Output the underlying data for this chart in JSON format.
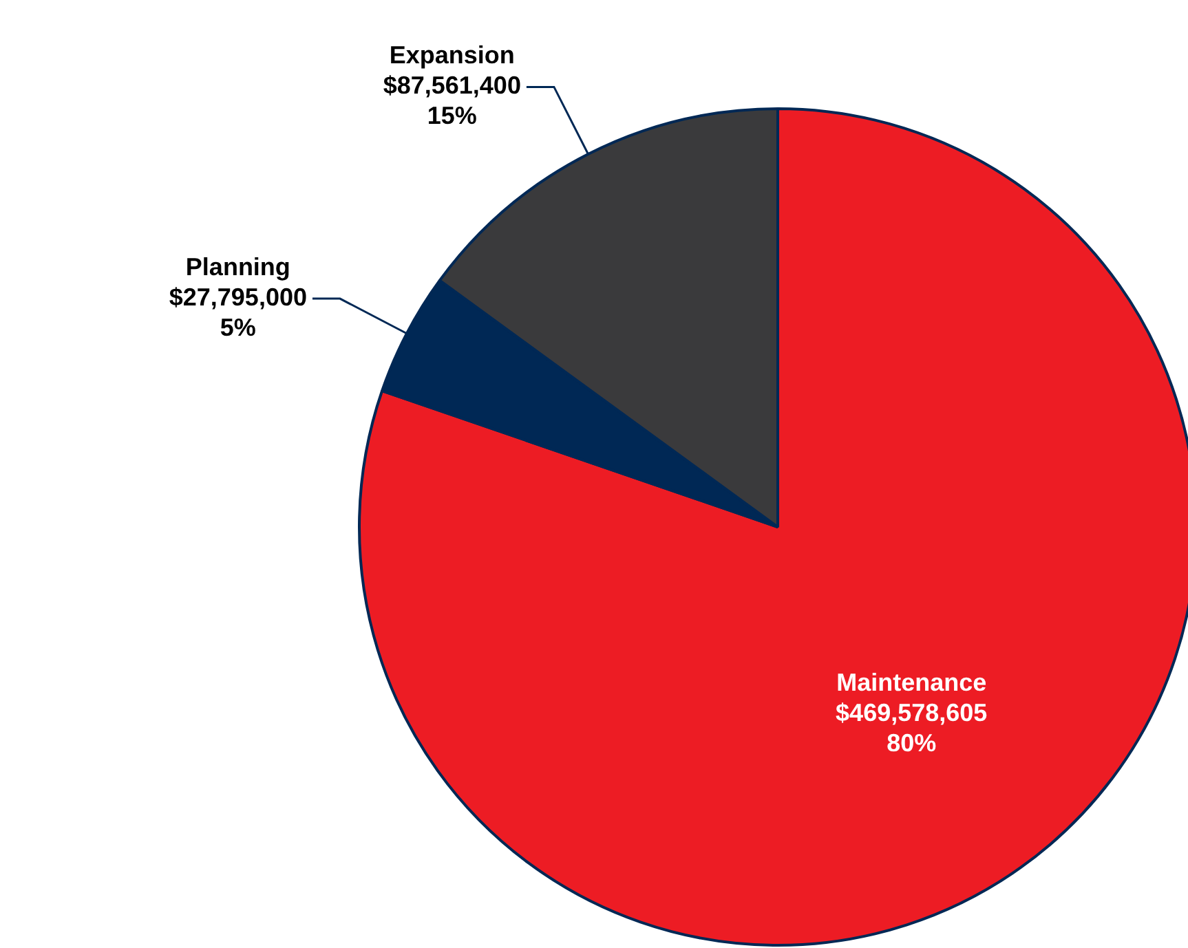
{
  "chart_data": {
    "type": "pie",
    "categories": [
      "Maintenance",
      "Planning",
      "Expansion"
    ],
    "values": [
      469578605,
      27795000,
      87561400
    ],
    "colors": [
      "#ed1c24",
      "#002855",
      "#3a3a3c"
    ],
    "value_labels": [
      "$469,578,605\n80%",
      "$27,795,000\n5%",
      "$87,561,400\n15%"
    ],
    "legend": false
  }
}
